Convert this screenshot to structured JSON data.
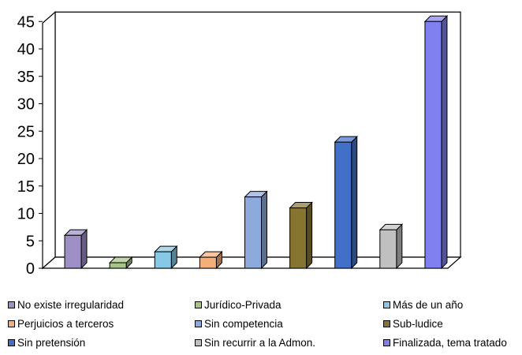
{
  "chart_data": {
    "type": "bar",
    "title": "",
    "xlabel": "",
    "ylabel": "",
    "ylim": [
      0,
      45
    ],
    "yticks": [
      0,
      5,
      10,
      15,
      20,
      25,
      30,
      35,
      40,
      45
    ],
    "grid": false,
    "legend_position": "bottom",
    "style": "3d",
    "categories": [
      "No existe irregularidad",
      "Jurídico-Privada",
      "Más de un año",
      "Perjuicios a terceros",
      "Sin competencia",
      "Sub-ludice",
      "Sin pretensión",
      "Sin recurrir a la Admon.",
      "Finalizada, tema tratado"
    ],
    "values": [
      6,
      1,
      3,
      2,
      13,
      11,
      23,
      7,
      45
    ],
    "colors": [
      "#9F8FC7",
      "#A8C488",
      "#86C8E6",
      "#F4AE78",
      "#8EA9DB",
      "#857530",
      "#4270C8",
      "#C0C0C0",
      "#8080F0"
    ]
  }
}
